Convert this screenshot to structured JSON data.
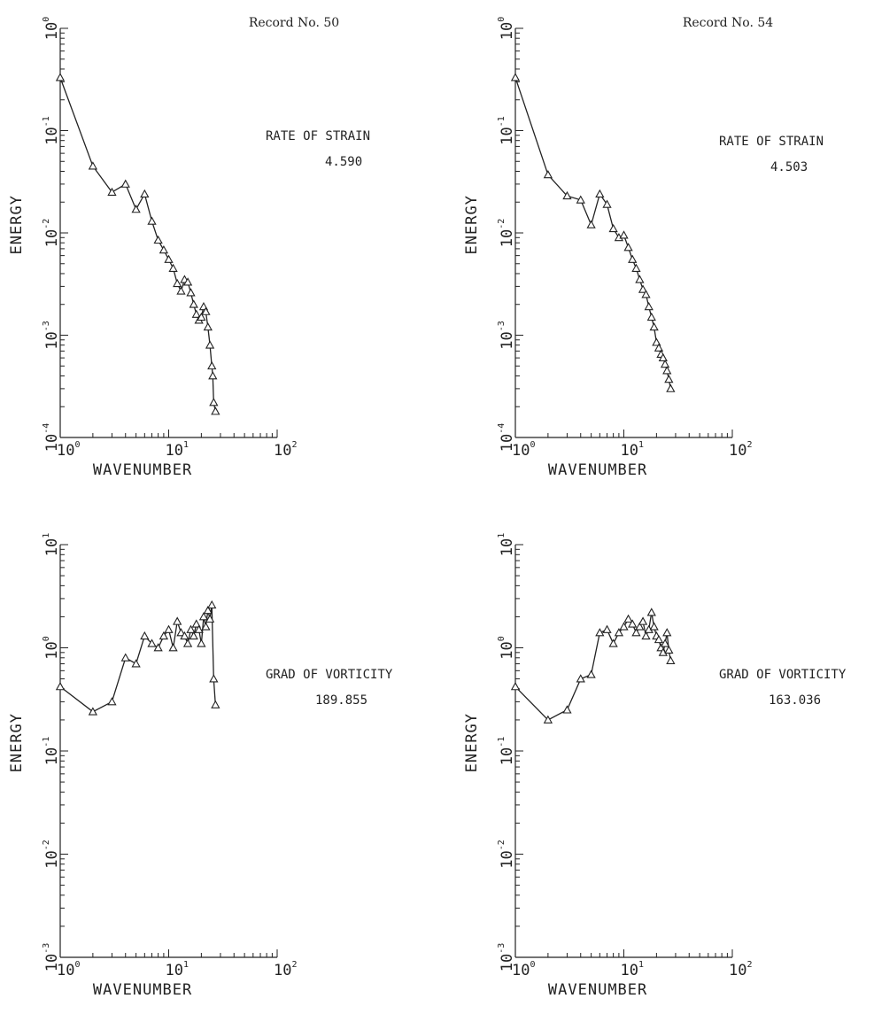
{
  "chart_data": [
    {
      "type": "line",
      "record_label": "Record No. 50",
      "xlabel": "WAVENUMBER",
      "ylabel": "ENERGY",
      "x_scale": "log",
      "y_scale": "log",
      "xlim": [
        1,
        100
      ],
      "ylim": [
        0.0001,
        1
      ],
      "x_tick_labels": [
        "10 0",
        "10 1",
        "10 2"
      ],
      "y_tick_labels": [
        "10 -4",
        "10 -3",
        "10 -2",
        "10 -1",
        "10 0"
      ],
      "annotation_title": "RATE OF STRAIN",
      "annotation_value": "4.590",
      "grid": false,
      "marker": "triangle",
      "series": [
        {
          "x": [
            1,
            2,
            3,
            4,
            5,
            6,
            7,
            8,
            9,
            10,
            11,
            12,
            13,
            14,
            15,
            16,
            17,
            18,
            19,
            20,
            21,
            22,
            23,
            24,
            25,
            25.5,
            26,
            27
          ],
          "y": [
            0.33,
            0.045,
            0.025,
            0.03,
            0.017,
            0.024,
            0.013,
            0.0085,
            0.0068,
            0.0055,
            0.0045,
            0.0032,
            0.0027,
            0.0035,
            0.0033,
            0.0026,
            0.002,
            0.0016,
            0.0014,
            0.0015,
            0.0019,
            0.0017,
            0.0012,
            0.0008,
            0.0005,
            0.0004,
            0.00022,
            0.00018
          ]
        }
      ]
    },
    {
      "type": "line",
      "record_label": "Record No. 54",
      "xlabel": "WAVENUMBER",
      "ylabel": "ENERGY",
      "x_scale": "log",
      "y_scale": "log",
      "xlim": [
        1,
        100
      ],
      "ylim": [
        0.0001,
        1
      ],
      "x_tick_labels": [
        "10 0",
        "10 1",
        "10 2"
      ],
      "y_tick_labels": [
        "10 -4",
        "10 -3",
        "10 -2",
        "10 -1",
        "10 0"
      ],
      "annotation_title": "RATE OF STRAIN",
      "annotation_value": "4.503",
      "grid": false,
      "marker": "triangle",
      "series": [
        {
          "x": [
            1,
            2,
            3,
            4,
            5,
            6,
            7,
            8,
            9,
            10,
            11,
            12,
            13,
            14,
            15,
            16,
            17,
            18,
            19,
            20,
            21,
            22,
            23,
            24,
            25,
            26,
            27
          ],
          "y": [
            0.33,
            0.037,
            0.023,
            0.021,
            0.012,
            0.024,
            0.019,
            0.011,
            0.009,
            0.0095,
            0.0072,
            0.0055,
            0.0045,
            0.0035,
            0.0028,
            0.0025,
            0.0019,
            0.0015,
            0.0012,
            0.00085,
            0.00075,
            0.00065,
            0.0006,
            0.00052,
            0.00045,
            0.00037,
            0.0003
          ]
        }
      ]
    },
    {
      "type": "line",
      "xlabel": "WAVENUMBER",
      "ylabel": "ENERGY",
      "x_scale": "log",
      "y_scale": "log",
      "xlim": [
        1,
        100
      ],
      "ylim": [
        0.001,
        10
      ],
      "x_tick_labels": [
        "10 0",
        "10 1",
        "10 2"
      ],
      "y_tick_labels": [
        "10 -3",
        "10 -2",
        "10 -1",
        "10 0",
        "10 1"
      ],
      "annotation_title": "GRAD OF VORTICITY",
      "annotation_value": "189.855",
      "grid": false,
      "marker": "triangle",
      "series": [
        {
          "x": [
            1,
            2,
            3,
            4,
            5,
            6,
            7,
            8,
            9,
            10,
            11,
            12,
            13,
            14,
            15,
            16,
            17,
            18,
            19,
            20,
            21,
            22,
            23,
            24,
            25,
            26,
            27
          ],
          "y": [
            0.42,
            0.24,
            0.3,
            0.8,
            0.7,
            1.3,
            1.1,
            1.0,
            1.3,
            1.5,
            1.0,
            1.8,
            1.4,
            1.3,
            1.1,
            1.5,
            1.3,
            1.7,
            1.5,
            1.1,
            2.0,
            1.6,
            2.3,
            1.9,
            2.6,
            0.5,
            0.28
          ]
        }
      ]
    },
    {
      "type": "line",
      "xlabel": "WAVENUMBER",
      "ylabel": "ENERGY",
      "x_scale": "log",
      "y_scale": "log",
      "xlim": [
        1,
        100
      ],
      "ylim": [
        0.001,
        10
      ],
      "x_tick_labels": [
        "10 0",
        "10 1",
        "10 2"
      ],
      "y_tick_labels": [
        "10 -3",
        "10 -2",
        "10 -1",
        "10 0",
        "10 1"
      ],
      "annotation_title": "GRAD OF VORTICITY",
      "annotation_value": "163.036",
      "grid": false,
      "marker": "triangle",
      "series": [
        {
          "x": [
            1,
            2,
            3,
            4,
            5,
            6,
            7,
            8,
            9,
            10,
            11,
            12,
            13,
            14,
            15,
            16,
            17,
            18,
            19,
            20,
            21,
            22,
            23,
            24,
            25,
            26,
            27
          ],
          "y": [
            0.42,
            0.2,
            0.25,
            0.5,
            0.55,
            1.4,
            1.5,
            1.1,
            1.4,
            1.6,
            1.9,
            1.7,
            1.4,
            1.6,
            1.8,
            1.3,
            1.5,
            2.2,
            1.6,
            1.3,
            1.2,
            1.0,
            0.9,
            1.1,
            1.4,
            0.95,
            0.75
          ]
        }
      ]
    }
  ]
}
